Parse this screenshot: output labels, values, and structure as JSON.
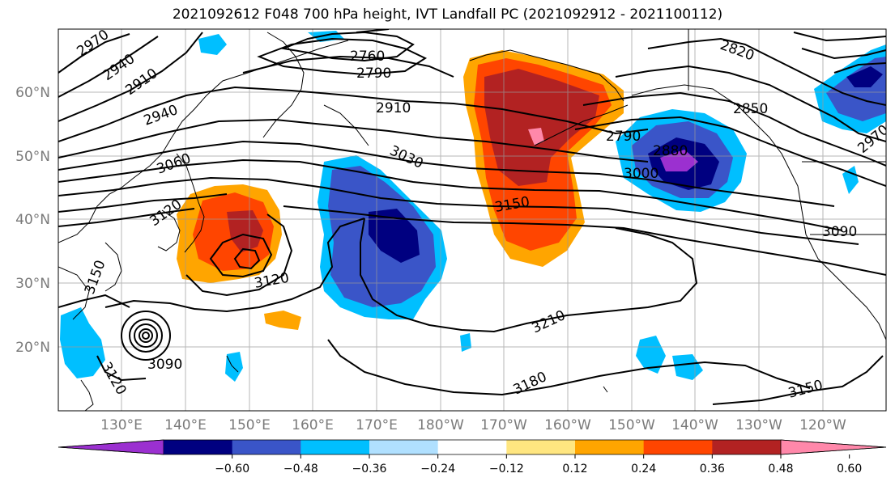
{
  "title": "2021092612 F048 700 hPa height, IVT Landfall PC (2021092912 - 2021100112)",
  "lat_labels": [
    "60°N",
    "50°N",
    "40°N",
    "30°N",
    "20°N"
  ],
  "lon_labels": [
    "130°E",
    "140°E",
    "150°E",
    "160°E",
    "170°E",
    "180°W",
    "170°W",
    "160°W",
    "150°W",
    "140°W",
    "130°W",
    "120°W"
  ],
  "height_contour_labels": [
    "2970",
    "2940",
    "2910",
    "2760",
    "2790",
    "2910",
    "2940",
    "3060",
    "3030",
    "3120",
    "3150",
    "3120",
    "3150",
    "3120",
    "3090",
    "2820",
    "2850",
    "2790",
    "2880",
    "3000",
    "2970",
    "3090",
    "3210",
    "3180",
    "3150"
  ],
  "colorbar": {
    "ticks": [
      "−0.60",
      "−0.48",
      "−0.36",
      "−0.24",
      "−0.12",
      "0.12",
      "0.24",
      "0.36",
      "0.48",
      "0.60"
    ],
    "colors": [
      "#9b30d0",
      "#000080",
      "#3a55c8",
      "#00bfff",
      "#b0e0ff",
      "#ffffff",
      "#ffe680",
      "#ffa500",
      "#ff4500",
      "#b22222",
      "#ff88aa"
    ]
  }
}
